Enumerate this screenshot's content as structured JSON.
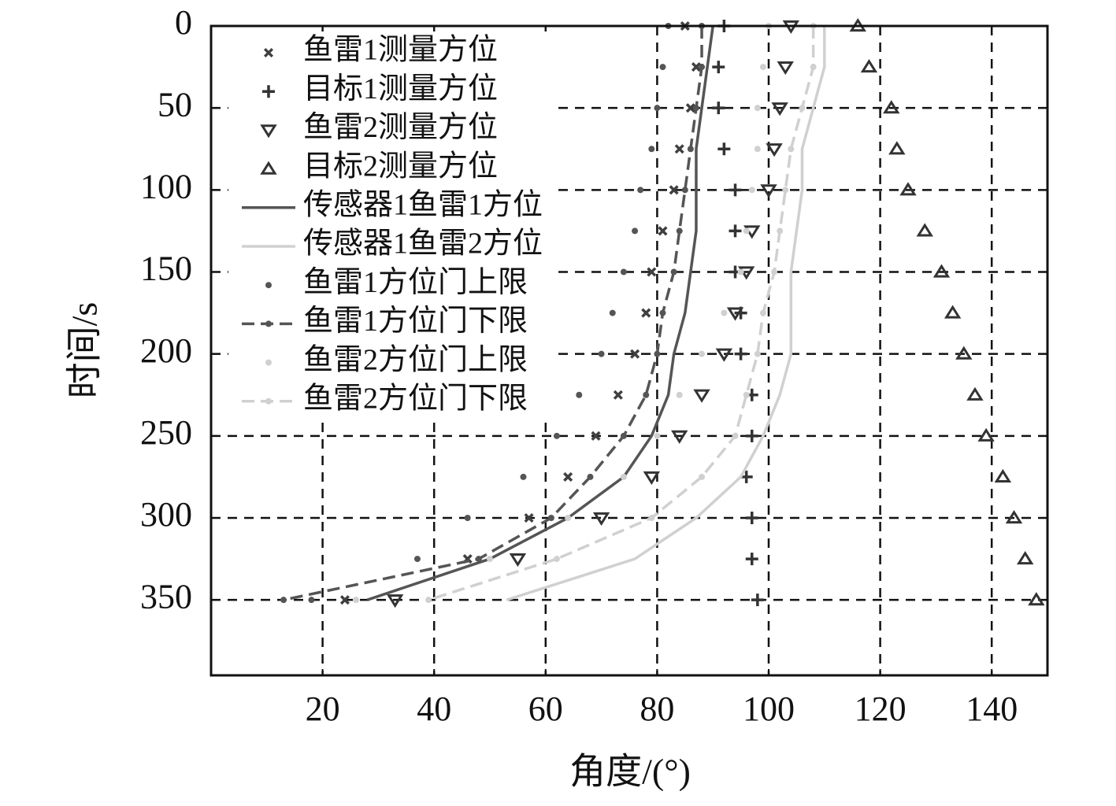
{
  "chart_data": {
    "type": "scatter",
    "xlabel": "角度/(°)",
    "ylabel": "时间/s",
    "xlim": [
      0,
      150
    ],
    "ylim": [
      0,
      396
    ],
    "y_inverted": true,
    "xticks": [
      20,
      40,
      60,
      80,
      100,
      120,
      140
    ],
    "yticks": [
      0,
      50,
      100,
      150,
      200,
      250,
      300,
      350
    ],
    "grid": true,
    "grid_style": "dashed",
    "legend": "upper left",
    "y": [
      0,
      25,
      50,
      75,
      100,
      125,
      150,
      175,
      200,
      225,
      250,
      275,
      300,
      325,
      350
    ],
    "series": [
      {
        "name": "鱼雷1测量方位",
        "color": "#404040",
        "marker": "x",
        "x": [
          85,
          87,
          86,
          84,
          83,
          81,
          79,
          78,
          76,
          73,
          69,
          64,
          57,
          46,
          24
        ]
      },
      {
        "name": "目标1测量方位",
        "color": "#333333",
        "marker": "+",
        "x": [
          92,
          91,
          91,
          92,
          94,
          94,
          94,
          95,
          95,
          97,
          97,
          96,
          97,
          97,
          98
        ]
      },
      {
        "name": "鱼雷2测量方位",
        "color": "#333333",
        "marker": "v",
        "x": [
          104,
          103,
          102,
          101,
          100,
          97,
          96,
          94,
          92,
          88,
          84,
          79,
          70,
          55,
          33
        ]
      },
      {
        "name": "目标2测量方位",
        "color": "#333333",
        "marker": "^",
        "x": [
          116,
          118,
          122,
          123,
          125,
          128,
          131,
          133,
          135,
          137,
          139,
          142,
          144,
          146,
          148
        ]
      },
      {
        "name": "传感器1鱼雷1方位",
        "color": "#555555",
        "line": "solid",
        "x": [
          90,
          89,
          88,
          87,
          87,
          87,
          86,
          85,
          83,
          82,
          79,
          74,
          64,
          50,
          28
        ]
      },
      {
        "name": "传感器1鱼雷2方位",
        "color": "#d0d0d0",
        "line": "solid",
        "x": [
          110,
          110,
          108,
          106,
          106,
          105,
          104,
          104,
          104,
          102,
          99,
          95,
          87,
          76,
          53
        ]
      },
      {
        "name": "鱼雷1方位门上限",
        "color": "#555555",
        "marker": "o",
        "x": [
          82,
          81,
          80,
          79,
          77,
          76,
          74,
          72,
          70,
          66,
          62,
          56,
          46,
          37,
          18
        ]
      },
      {
        "name": "鱼雷1方位门下限",
        "color": "#555555",
        "marker": "o",
        "line": "dashed",
        "x": [
          88,
          88,
          87,
          86,
          85,
          84,
          83,
          81,
          80,
          78,
          74,
          68,
          61,
          48,
          13
        ]
      },
      {
        "name": "鱼雷2方位门上限",
        "color": "#d0d0d0",
        "marker": "o",
        "x": [
          100,
          99,
          98,
          98,
          97,
          96,
          95,
          92,
          88,
          84,
          80,
          74,
          64,
          50,
          26
        ]
      },
      {
        "name": "鱼雷2方位门下限",
        "color": "#d0d0d0",
        "marker": "o",
        "line": "dashed",
        "x": [
          108,
          108,
          106,
          104,
          103,
          102,
          101,
          99,
          98,
          96,
          94,
          88,
          79,
          62,
          39
        ]
      }
    ]
  }
}
